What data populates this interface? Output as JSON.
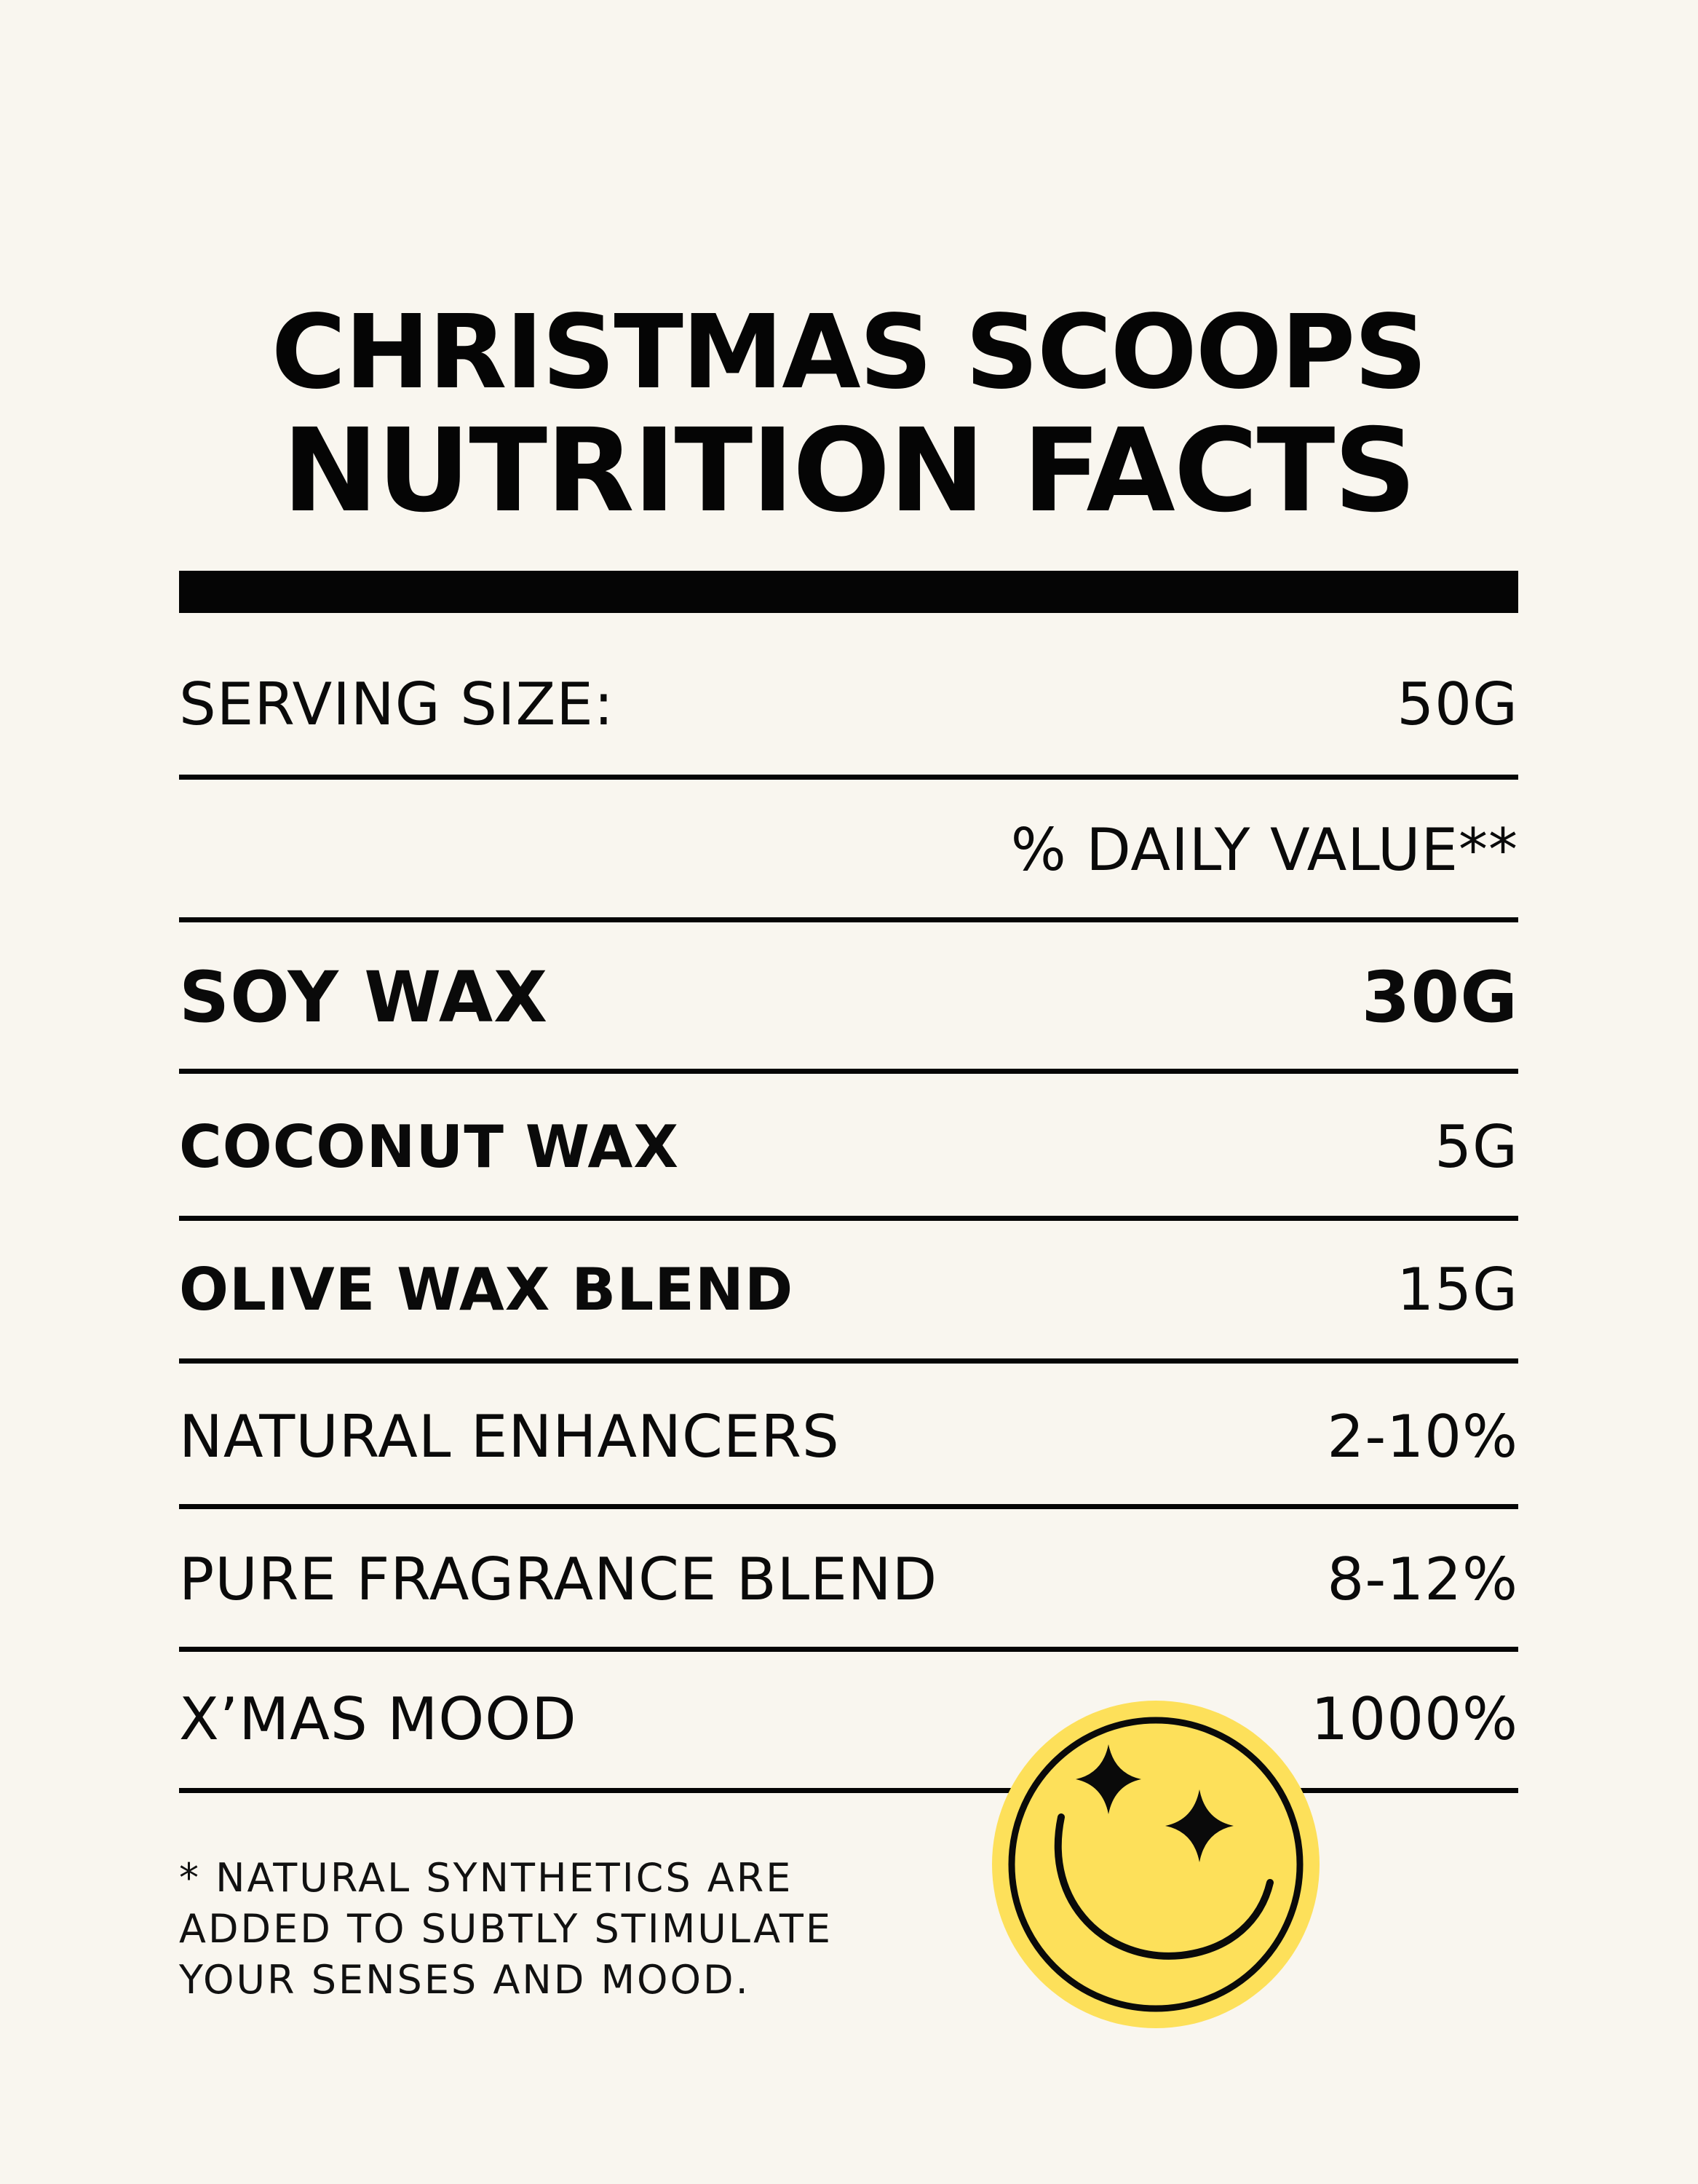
{
  "title": {
    "line1": "CHRISTMAS SCOOPS",
    "line2": "NUTRITION FACTS"
  },
  "serving": {
    "label": "SERVING SIZE:",
    "value": "50G"
  },
  "daily_value_header": "% DAILY VALUE**",
  "rows": [
    {
      "name": "SOY WAX",
      "value": "30G"
    },
    {
      "name": "COCONUT WAX",
      "value": "5G"
    },
    {
      "name": "OLIVE WAX BLEND",
      "value": "15G"
    },
    {
      "name": "NATURAL ENHANCERS",
      "value": "2-10%"
    },
    {
      "name": "PURE FRAGRANCE BLEND",
      "value": "8-12%"
    },
    {
      "name": "X’MAS MOOD",
      "value": "1000%"
    }
  ],
  "footnote": {
    "line1": "* NATURAL SYNTHETICS ARE",
    "line2": "ADDED TO SUBTLY STIMULATE",
    "line3": "YOUR SENSES AND MOOD."
  },
  "colors": {
    "background": "#f9f6ef",
    "ink": "#050505",
    "smiley_yellow": "#fde05a"
  },
  "icons": {
    "smiley": "smiley-star-eyes-icon"
  }
}
